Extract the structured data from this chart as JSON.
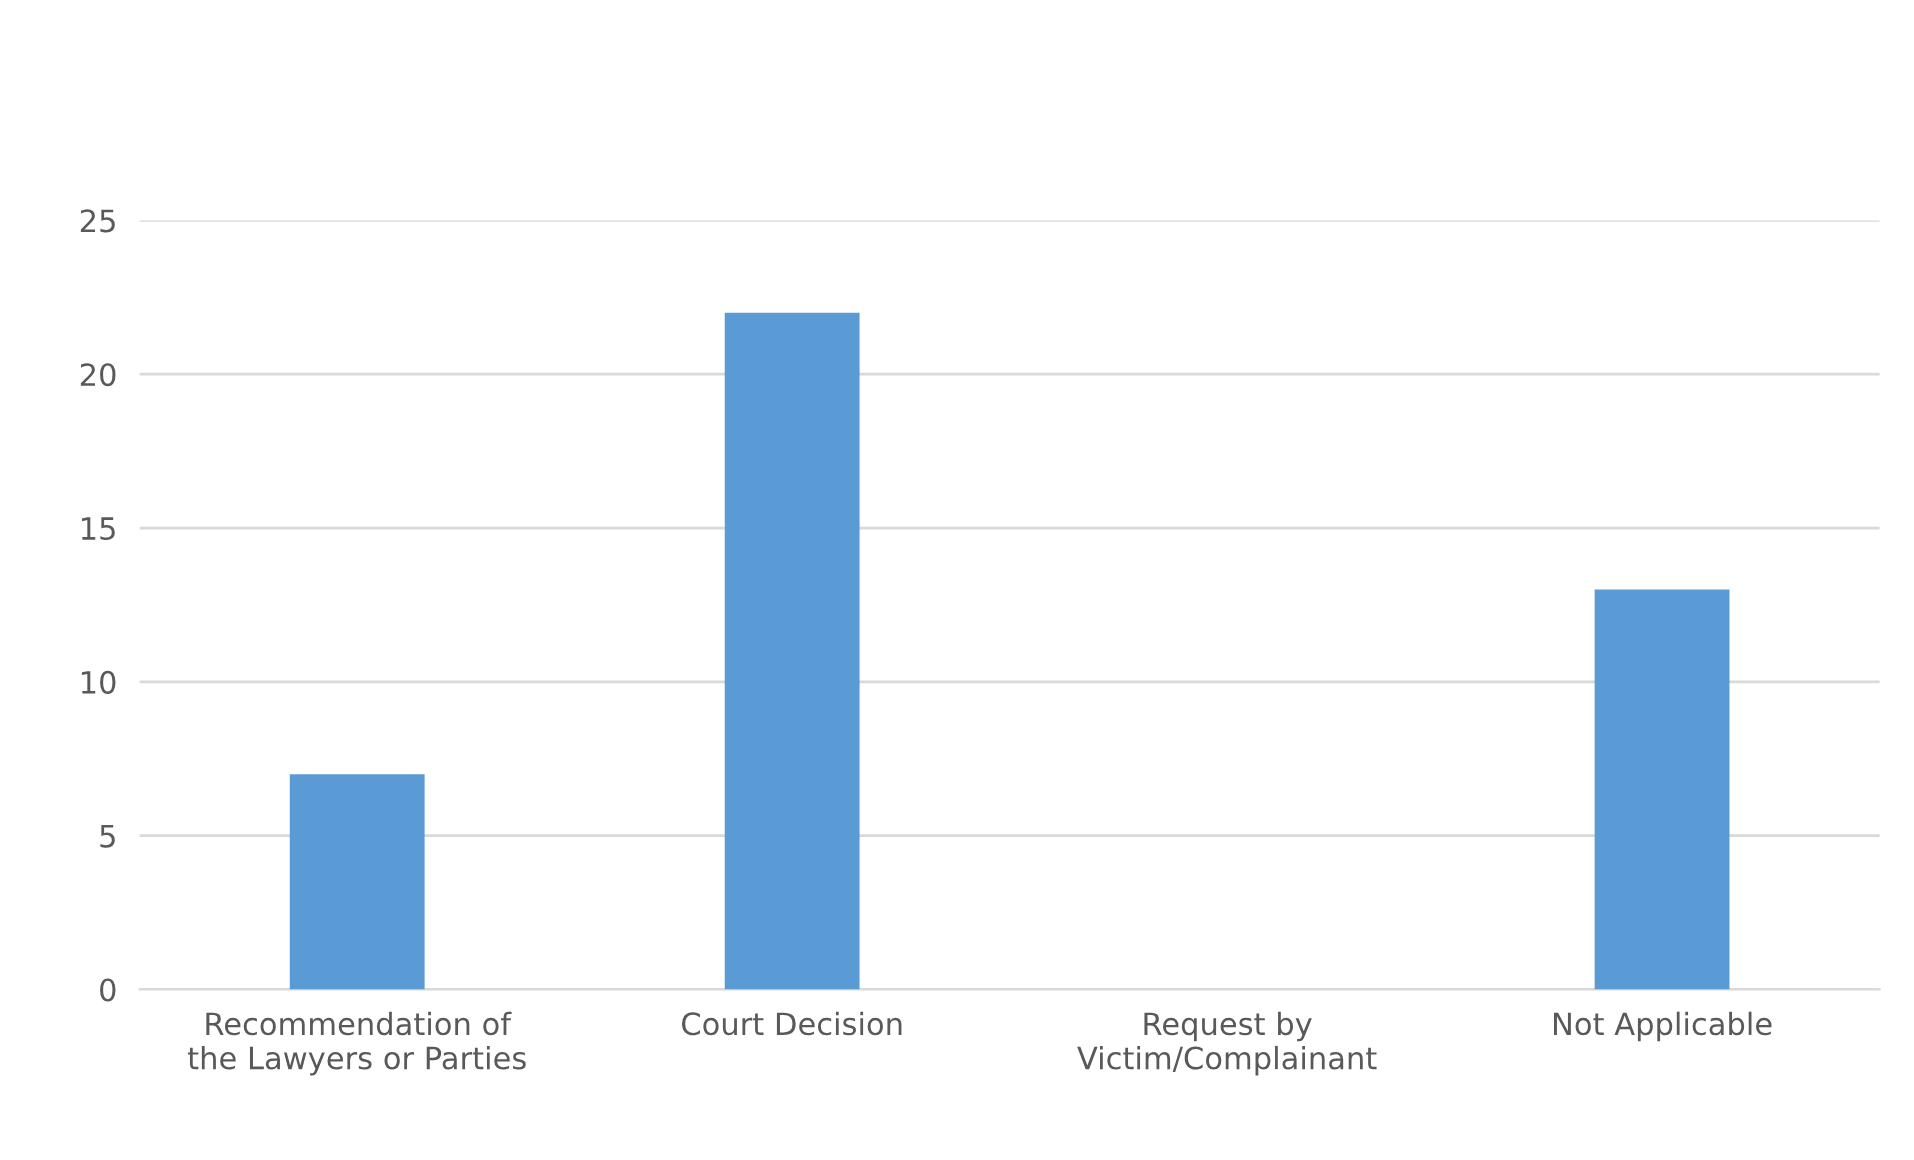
{
  "chart_data": {
    "type": "bar",
    "categories": [
      "Recommendation of\nthe Lawyers or Parties",
      "Court Decision",
      "Request by\nVictim/Complainant",
      "Not Applicable"
    ],
    "values": [
      7,
      22,
      0,
      13
    ],
    "color": "#5b9bd5",
    "ylim": [
      0,
      25
    ],
    "yticks": [
      0,
      5,
      10,
      15,
      20,
      25
    ],
    "grid": "y",
    "legend": false
  }
}
